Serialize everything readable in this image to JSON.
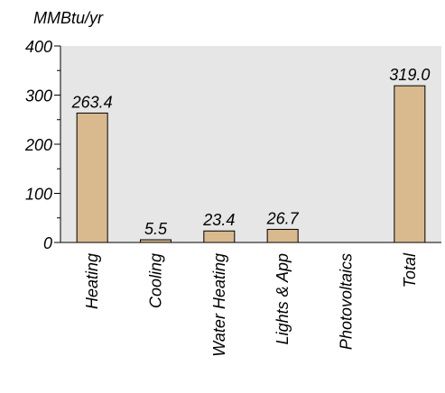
{
  "chart_data": {
    "type": "bar",
    "title": "",
    "xlabel": "",
    "ylabel": "MMBtu/yr",
    "categories": [
      "Heating",
      "Cooling",
      "Water Heating",
      "Lights & App",
      "Photovoltaics",
      "Total"
    ],
    "values": [
      263.4,
      5.5,
      23.4,
      26.7,
      0,
      319.0
    ],
    "data_labels": [
      "263.4",
      "5.5",
      "23.4",
      "26.7",
      "",
      "319.0"
    ],
    "ylim": [
      0,
      400
    ],
    "yticks": [
      0,
      100,
      200,
      300,
      400
    ],
    "ytick_labels": [
      "0",
      "100",
      "200",
      "300",
      "400"
    ],
    "grid": false,
    "legend": "none",
    "colors": {
      "plot_background": "#e6e6e6",
      "bar_fill": "#d8ba8e",
      "bar_stroke": "#000000"
    }
  }
}
